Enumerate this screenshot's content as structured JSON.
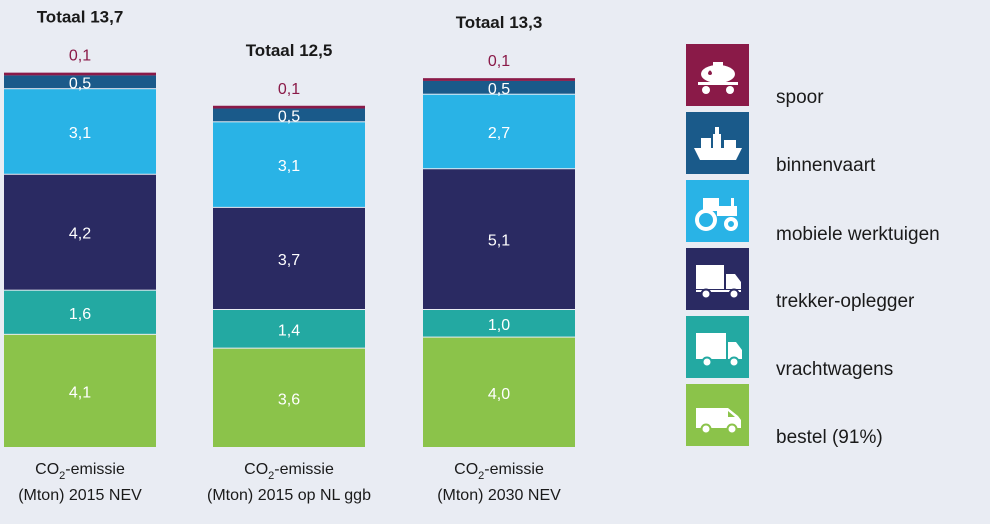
{
  "chart_data": {
    "type": "bar",
    "stacked": true,
    "unit": "Mton",
    "categories": [
      {
        "line1": "CO",
        "sub": "2",
        "line1b": "-emissie",
        "line2": "(Mton) 2015 NEV"
      },
      {
        "line1": "CO",
        "sub": "2",
        "line1b": "-emissie",
        "line2": "(Mton) 2015 op NL ggb"
      },
      {
        "line1": "CO",
        "sub": "2",
        "line1b": "-emissie",
        "line2": "(Mton) 2030 NEV"
      }
    ],
    "totals": [
      "Totaal 13,7",
      "Totaal 12,5",
      "Totaal 13,3"
    ],
    "series": [
      {
        "name": "bestel (91%)",
        "color": "#8bc34a",
        "icon": "van-icon",
        "values": [
          4.1,
          3.6,
          4.0
        ],
        "labels": [
          "4,1",
          "3,6",
          "4,0"
        ]
      },
      {
        "name": "vrachtwagens",
        "color": "#23a9a2",
        "icon": "box-truck-icon",
        "values": [
          1.6,
          1.4,
          1.0
        ],
        "labels": [
          "1,6",
          "1,4",
          "1,0"
        ]
      },
      {
        "name": "trekker-oplegger",
        "color": "#2a2a62",
        "icon": "semi-truck-icon",
        "values": [
          4.2,
          3.7,
          5.1
        ],
        "labels": [
          "4,2",
          "3,7",
          "5,1"
        ]
      },
      {
        "name": "mobiele werktuigen",
        "color": "#29b3e6",
        "icon": "tractor-icon",
        "values": [
          3.1,
          3.1,
          2.7
        ],
        "labels": [
          "3,1",
          "3,1",
          "2,7"
        ]
      },
      {
        "name": "binnenvaart",
        "color": "#1a5a8a",
        "icon": "ship-icon",
        "values": [
          0.5,
          0.5,
          0.5
        ],
        "labels": [
          "0,5",
          "0,5",
          "0,5"
        ]
      },
      {
        "name": "spoor",
        "color": "#8a1a48",
        "icon": "tank-wagon-icon",
        "values": [
          0.1,
          0.1,
          0.1
        ],
        "labels": [
          "0,1",
          "0,1",
          "0,1"
        ]
      }
    ],
    "legend_order": [
      "spoor",
      "binnenvaart",
      "mobiele werktuigen",
      "trekker-oplegger",
      "vrachtwagens",
      "bestel (91%)"
    ],
    "ylim": [
      0,
      13.7
    ],
    "grid": false,
    "legend_position": "right"
  }
}
